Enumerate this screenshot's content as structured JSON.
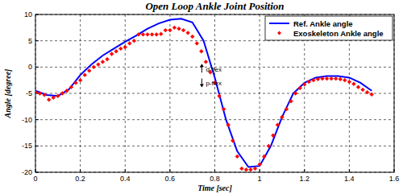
{
  "chart_data": {
    "type": "line",
    "title": "Open Loop Ankle Joint Position",
    "x_label": "Time [sec]",
    "y_label": "Angle [degree]",
    "xlim": [
      0,
      1.6
    ],
    "ylim": [
      -20,
      10
    ],
    "xticks": [
      0,
      0.2,
      0.4,
      0.6,
      0.8,
      1,
      1.2,
      1.4,
      1.6
    ],
    "yticks": [
      -20,
      -15,
      -10,
      -5,
      0,
      5,
      10
    ],
    "grid": true,
    "legend": "top-right",
    "annotations": [
      {
        "text": "d-flex",
        "x": 0.76,
        "y": -0.9
      },
      {
        "text": "p-flex",
        "x": 0.76,
        "y": -3.4
      }
    ],
    "series": [
      {
        "name": "Ref. Ankle angle",
        "type": "line",
        "color": "#0000ff",
        "line_style": "solid",
        "x": [
          0,
          0.05,
          0.1,
          0.15,
          0.2,
          0.25,
          0.3,
          0.35,
          0.4,
          0.45,
          0.5,
          0.55,
          0.6,
          0.65,
          0.7,
          0.75,
          0.8,
          0.85,
          0.9,
          0.95,
          1,
          1.05,
          1.1,
          1.15,
          1.2,
          1.25,
          1.3,
          1.35,
          1.4,
          1.45,
          1.5
        ],
        "values": [
          -4.5,
          -5.3,
          -5.5,
          -4.2,
          -1.5,
          0.5,
          2.2,
          3.5,
          4.8,
          6,
          7.3,
          8.3,
          9,
          9.2,
          8.5,
          5,
          -2,
          -10,
          -16,
          -19,
          -18.8,
          -15,
          -9.5,
          -5,
          -3,
          -2,
          -1.7,
          -1.7,
          -2,
          -3,
          -4.5
        ]
      },
      {
        "name": "Exoskeleton Ankle angle",
        "type": "scatter",
        "color": "#ff0000",
        "marker": "diamond",
        "x": [
          0,
          0.02,
          0.04,
          0.06,
          0.08,
          0.1,
          0.12,
          0.14,
          0.16,
          0.18,
          0.2,
          0.22,
          0.24,
          0.26,
          0.28,
          0.3,
          0.32,
          0.34,
          0.36,
          0.38,
          0.4,
          0.42,
          0.44,
          0.46,
          0.48,
          0.5,
          0.52,
          0.54,
          0.56,
          0.58,
          0.6,
          0.62,
          0.64,
          0.66,
          0.68,
          0.7,
          0.72,
          0.74,
          0.76,
          0.78,
          0.8,
          0.82,
          0.84,
          0.86,
          0.88,
          0.9,
          0.92,
          0.94,
          0.96,
          0.98,
          1,
          1.02,
          1.04,
          1.06,
          1.08,
          1.1,
          1.12,
          1.14,
          1.16,
          1.18,
          1.2,
          1.22,
          1.24,
          1.26,
          1.28,
          1.3,
          1.32,
          1.34,
          1.36,
          1.38,
          1.4,
          1.42,
          1.44,
          1.46,
          1.48,
          1.5
        ],
        "values": [
          -4.8,
          -5,
          -5.3,
          -6.2,
          -5.8,
          -5.5,
          -5,
          -4.5,
          -3.8,
          -3,
          -2.5,
          -1.5,
          -0.7,
          0,
          0.5,
          1,
          1.5,
          2.5,
          3,
          3.5,
          3.8,
          4.5,
          5,
          6.2,
          6.2,
          6.2,
          6.2,
          6.2,
          6.3,
          7,
          7,
          7.5,
          7.3,
          7,
          6.5,
          5.8,
          4.5,
          3,
          1,
          -1,
          -3,
          -5.5,
          -8,
          -11,
          -14,
          -17,
          -19.3,
          -19.5,
          -19.5,
          -19.3,
          -18.5,
          -17,
          -15,
          -13,
          -11,
          -9.5,
          -8,
          -6.5,
          -5,
          -4,
          -3.3,
          -2.8,
          -2.5,
          -2.3,
          -2.2,
          -2.2,
          -2.2,
          -2.2,
          -2.3,
          -2.5,
          -2.8,
          -3.2,
          -3.8,
          -4.3,
          -4.8,
          -5.2
        ]
      }
    ]
  }
}
